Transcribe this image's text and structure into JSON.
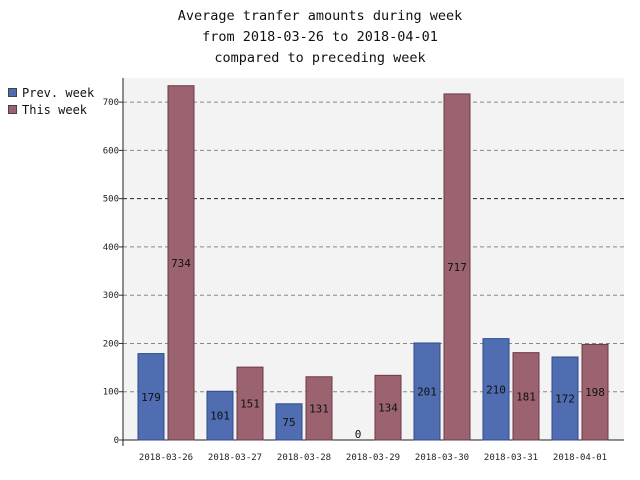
{
  "chart_data": {
    "type": "bar",
    "title_lines": [
      "Average tranfer amounts during week",
      "from 2018-03-26 to 2018-04-01",
      "compared to preceding week"
    ],
    "categories": [
      "2018-03-26",
      "2018-03-27",
      "2018-03-28",
      "2018-03-29",
      "2018-03-30",
      "2018-03-31",
      "2018-04-01"
    ],
    "series": [
      {
        "name": "Prev. week",
        "color": "#4f6db0",
        "values": [
          179,
          101,
          75,
          0,
          201,
          210,
          172
        ]
      },
      {
        "name": "This week",
        "color": "#9b6270",
        "values": [
          734,
          151,
          131,
          134,
          717,
          181,
          198
        ]
      }
    ],
    "yticks": [
      0,
      100,
      200,
      300,
      400,
      500,
      600,
      700
    ],
    "ylim": [
      0,
      750
    ],
    "grid": true,
    "legend_position": "top-left",
    "data_labels": true
  }
}
